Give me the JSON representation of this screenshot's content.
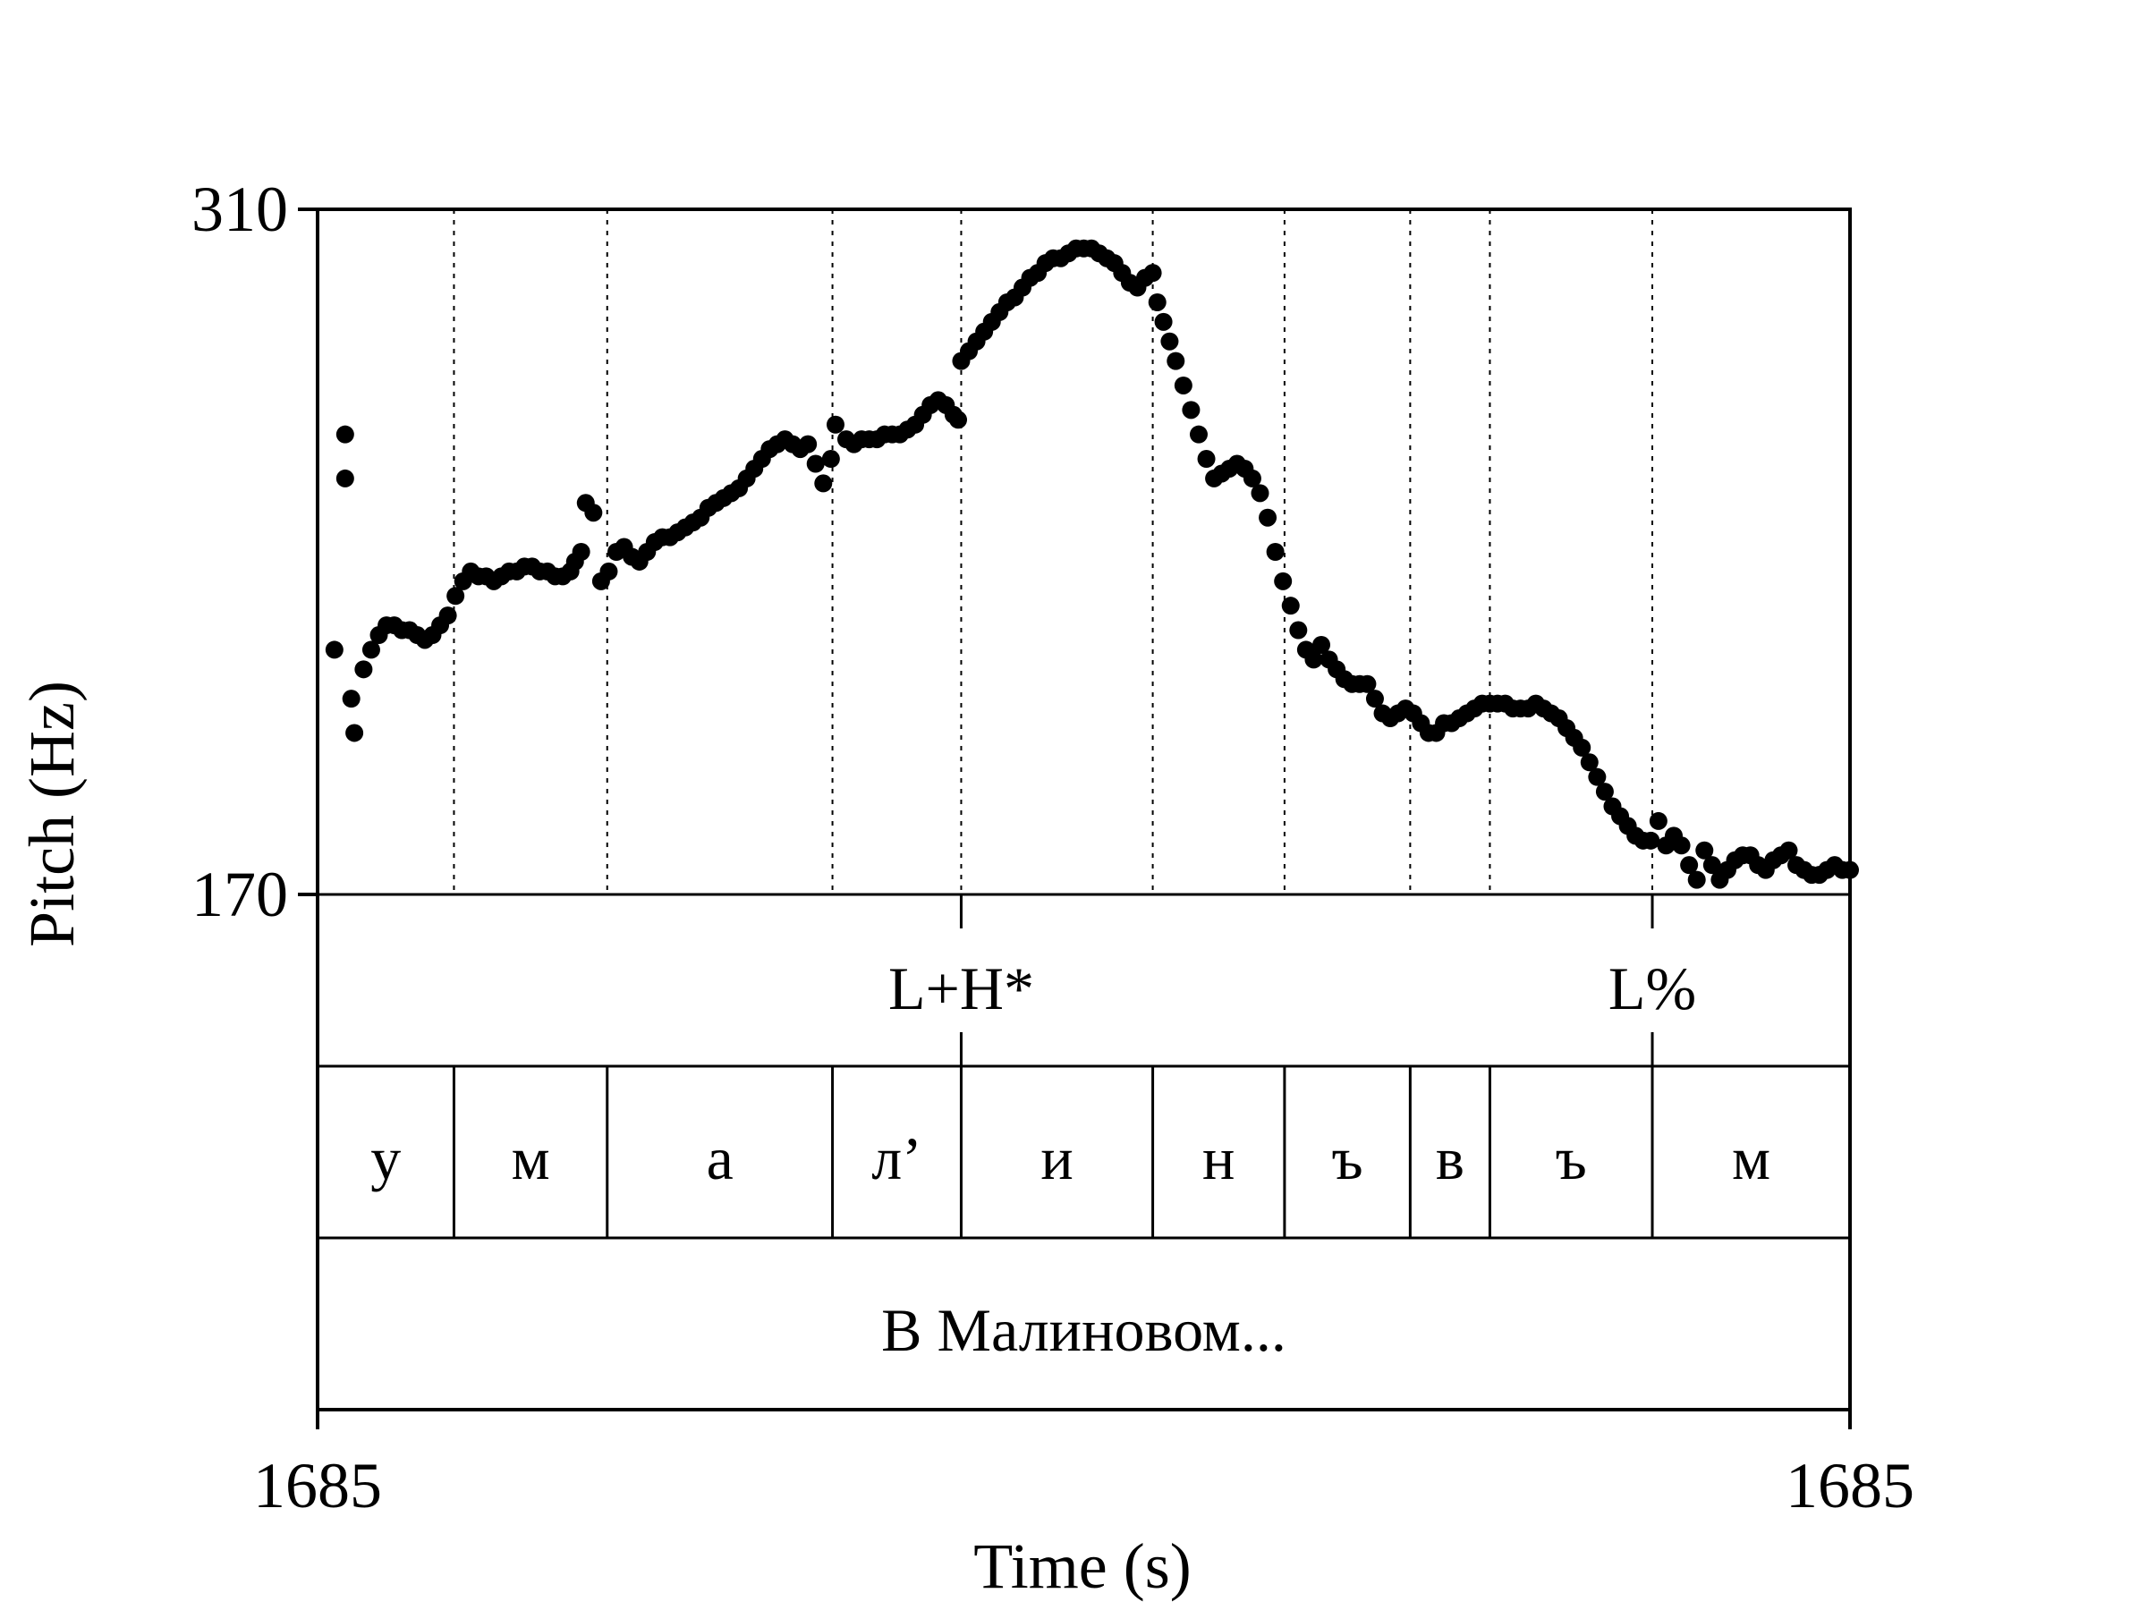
{
  "chart_data": {
    "type": "scatter",
    "title": "",
    "xlabel": "Time (s)",
    "ylabel": "Pitch (Hz)",
    "x_tick_labels": [
      "1685",
      "1685"
    ],
    "ylim": [
      170,
      310
    ],
    "y_ticks": [
      170,
      310
    ],
    "grid": "dotted vertical segment boundaries",
    "tone_tier": [
      {
        "label": "L+H*",
        "time": 0.42
      },
      {
        "label": "L%",
        "time": 0.871
      }
    ],
    "segment_tier": [
      {
        "label": "у",
        "start": 0.0,
        "end": 0.089
      },
      {
        "label": "м",
        "start": 0.089,
        "end": 0.189
      },
      {
        "label": "а",
        "start": 0.189,
        "end": 0.336
      },
      {
        "label": "л’",
        "start": 0.336,
        "end": 0.42
      },
      {
        "label": "и",
        "start": 0.42,
        "end": 0.545
      },
      {
        "label": "н",
        "start": 0.545,
        "end": 0.631
      },
      {
        "label": "ъ",
        "start": 0.631,
        "end": 0.713
      },
      {
        "label": "в",
        "start": 0.713,
        "end": 0.765
      },
      {
        "label": "ъ",
        "start": 0.765,
        "end": 0.871
      },
      {
        "label": "м",
        "start": 0.871,
        "end": 1.0
      }
    ],
    "word_tier": [
      {
        "label": "В Малиновом...",
        "start": 0.0,
        "end": 1.0
      }
    ],
    "series": [
      {
        "points": [
          [
            0.011,
            220
          ],
          [
            0.018,
            255
          ],
          [
            0.018,
            264
          ],
          [
            0.022,
            210
          ],
          [
            0.024,
            203
          ],
          [
            0.03,
            216
          ],
          [
            0.035,
            220
          ],
          [
            0.04,
            223
          ],
          [
            0.045,
            225
          ],
          [
            0.05,
            225
          ],
          [
            0.055,
            224
          ],
          [
            0.06,
            224
          ],
          [
            0.065,
            223
          ],
          [
            0.07,
            222
          ],
          [
            0.075,
            223
          ],
          [
            0.08,
            225
          ],
          [
            0.085,
            227
          ],
          [
            0.09,
            231
          ],
          [
            0.095,
            234
          ],
          [
            0.1,
            236
          ],
          [
            0.105,
            235
          ],
          [
            0.11,
            235
          ],
          [
            0.115,
            234
          ],
          [
            0.12,
            235
          ],
          [
            0.125,
            236
          ],
          [
            0.13,
            236
          ],
          [
            0.135,
            237
          ],
          [
            0.14,
            237
          ],
          [
            0.145,
            236
          ],
          [
            0.15,
            236
          ],
          [
            0.155,
            235
          ],
          [
            0.16,
            235
          ],
          [
            0.165,
            236
          ],
          [
            0.168,
            238
          ],
          [
            0.172,
            240
          ],
          [
            0.175,
            250
          ],
          [
            0.18,
            248
          ],
          [
            0.185,
            234
          ],
          [
            0.19,
            236
          ],
          [
            0.195,
            240
          ],
          [
            0.2,
            241
          ],
          [
            0.205,
            239
          ],
          [
            0.21,
            238
          ],
          [
            0.215,
            240
          ],
          [
            0.22,
            242
          ],
          [
            0.225,
            243
          ],
          [
            0.23,
            243
          ],
          [
            0.235,
            244
          ],
          [
            0.24,
            245
          ],
          [
            0.245,
            246
          ],
          [
            0.25,
            247
          ],
          [
            0.255,
            249
          ],
          [
            0.26,
            250
          ],
          [
            0.265,
            251
          ],
          [
            0.27,
            252
          ],
          [
            0.275,
            253
          ],
          [
            0.28,
            255
          ],
          [
            0.285,
            257
          ],
          [
            0.29,
            259
          ],
          [
            0.295,
            261
          ],
          [
            0.3,
            262
          ],
          [
            0.305,
            263
          ],
          [
            0.31,
            262
          ],
          [
            0.315,
            261
          ],
          [
            0.32,
            262
          ],
          [
            0.325,
            258
          ],
          [
            0.33,
            254
          ],
          [
            0.335,
            259
          ],
          [
            0.338,
            266
          ],
          [
            0.345,
            263
          ],
          [
            0.35,
            262
          ],
          [
            0.355,
            263
          ],
          [
            0.36,
            263
          ],
          [
            0.365,
            263
          ],
          [
            0.37,
            264
          ],
          [
            0.375,
            264
          ],
          [
            0.38,
            264
          ],
          [
            0.385,
            265
          ],
          [
            0.39,
            266
          ],
          [
            0.395,
            268
          ],
          [
            0.4,
            270
          ],
          [
            0.405,
            271
          ],
          [
            0.41,
            270
          ],
          [
            0.415,
            268
          ],
          [
            0.418,
            267
          ],
          [
            0.42,
            279
          ],
          [
            0.425,
            281
          ],
          [
            0.43,
            283
          ],
          [
            0.435,
            285
          ],
          [
            0.44,
            287
          ],
          [
            0.445,
            289
          ],
          [
            0.45,
            291
          ],
          [
            0.455,
            292
          ],
          [
            0.46,
            294
          ],
          [
            0.465,
            296
          ],
          [
            0.47,
            297
          ],
          [
            0.475,
            299
          ],
          [
            0.48,
            300
          ],
          [
            0.485,
            300
          ],
          [
            0.49,
            301
          ],
          [
            0.495,
            302
          ],
          [
            0.5,
            302
          ],
          [
            0.505,
            302
          ],
          [
            0.51,
            301
          ],
          [
            0.515,
            300
          ],
          [
            0.52,
            299
          ],
          [
            0.525,
            297
          ],
          [
            0.53,
            295
          ],
          [
            0.535,
            294
          ],
          [
            0.54,
            296
          ],
          [
            0.545,
            297
          ],
          [
            0.548,
            291
          ],
          [
            0.552,
            287
          ],
          [
            0.556,
            283
          ],
          [
            0.56,
            279
          ],
          [
            0.565,
            274
          ],
          [
            0.57,
            269
          ],
          [
            0.575,
            264
          ],
          [
            0.58,
            259
          ],
          [
            0.585,
            255
          ],
          [
            0.59,
            256
          ],
          [
            0.595,
            257
          ],
          [
            0.6,
            258
          ],
          [
            0.605,
            257
          ],
          [
            0.61,
            255
          ],
          [
            0.615,
            252
          ],
          [
            0.62,
            247
          ],
          [
            0.625,
            240
          ],
          [
            0.63,
            234
          ],
          [
            0.635,
            229
          ],
          [
            0.64,
            224
          ],
          [
            0.645,
            220
          ],
          [
            0.65,
            218
          ],
          [
            0.655,
            221
          ],
          [
            0.66,
            218
          ],
          [
            0.665,
            216
          ],
          [
            0.67,
            214
          ],
          [
            0.675,
            213
          ],
          [
            0.68,
            213
          ],
          [
            0.685,
            213
          ],
          [
            0.69,
            210
          ],
          [
            0.695,
            207
          ],
          [
            0.7,
            206
          ],
          [
            0.705,
            207
          ],
          [
            0.71,
            208
          ],
          [
            0.715,
            207
          ],
          [
            0.72,
            205
          ],
          [
            0.725,
            203
          ],
          [
            0.73,
            203
          ],
          [
            0.735,
            205
          ],
          [
            0.74,
            205
          ],
          [
            0.745,
            206
          ],
          [
            0.75,
            207
          ],
          [
            0.755,
            208
          ],
          [
            0.76,
            209
          ],
          [
            0.765,
            209
          ],
          [
            0.77,
            209
          ],
          [
            0.775,
            209
          ],
          [
            0.78,
            208
          ],
          [
            0.785,
            208
          ],
          [
            0.79,
            208
          ],
          [
            0.795,
            209
          ],
          [
            0.8,
            208
          ],
          [
            0.805,
            207
          ],
          [
            0.81,
            206
          ],
          [
            0.815,
            204
          ],
          [
            0.82,
            202
          ],
          [
            0.825,
            200
          ],
          [
            0.83,
            197
          ],
          [
            0.835,
            194
          ],
          [
            0.84,
            191
          ],
          [
            0.845,
            188
          ],
          [
            0.85,
            186
          ],
          [
            0.855,
            184
          ],
          [
            0.86,
            182
          ],
          [
            0.865,
            181
          ],
          [
            0.87,
            181
          ],
          [
            0.875,
            185
          ],
          [
            0.88,
            180
          ],
          [
            0.885,
            182
          ],
          [
            0.89,
            180
          ],
          [
            0.895,
            176
          ],
          [
            0.9,
            173
          ],
          [
            0.905,
            179
          ],
          [
            0.91,
            176
          ],
          [
            0.915,
            173
          ],
          [
            0.92,
            175
          ],
          [
            0.925,
            177
          ],
          [
            0.93,
            178
          ],
          [
            0.935,
            178
          ],
          [
            0.94,
            176
          ],
          [
            0.945,
            175
          ],
          [
            0.95,
            177
          ],
          [
            0.955,
            178
          ],
          [
            0.96,
            179
          ],
          [
            0.965,
            176
          ],
          [
            0.97,
            175
          ],
          [
            0.975,
            174
          ],
          [
            0.98,
            174
          ],
          [
            0.985,
            175
          ],
          [
            0.99,
            176
          ],
          [
            0.995,
            175
          ],
          [
            1.0,
            175
          ]
        ]
      }
    ]
  }
}
